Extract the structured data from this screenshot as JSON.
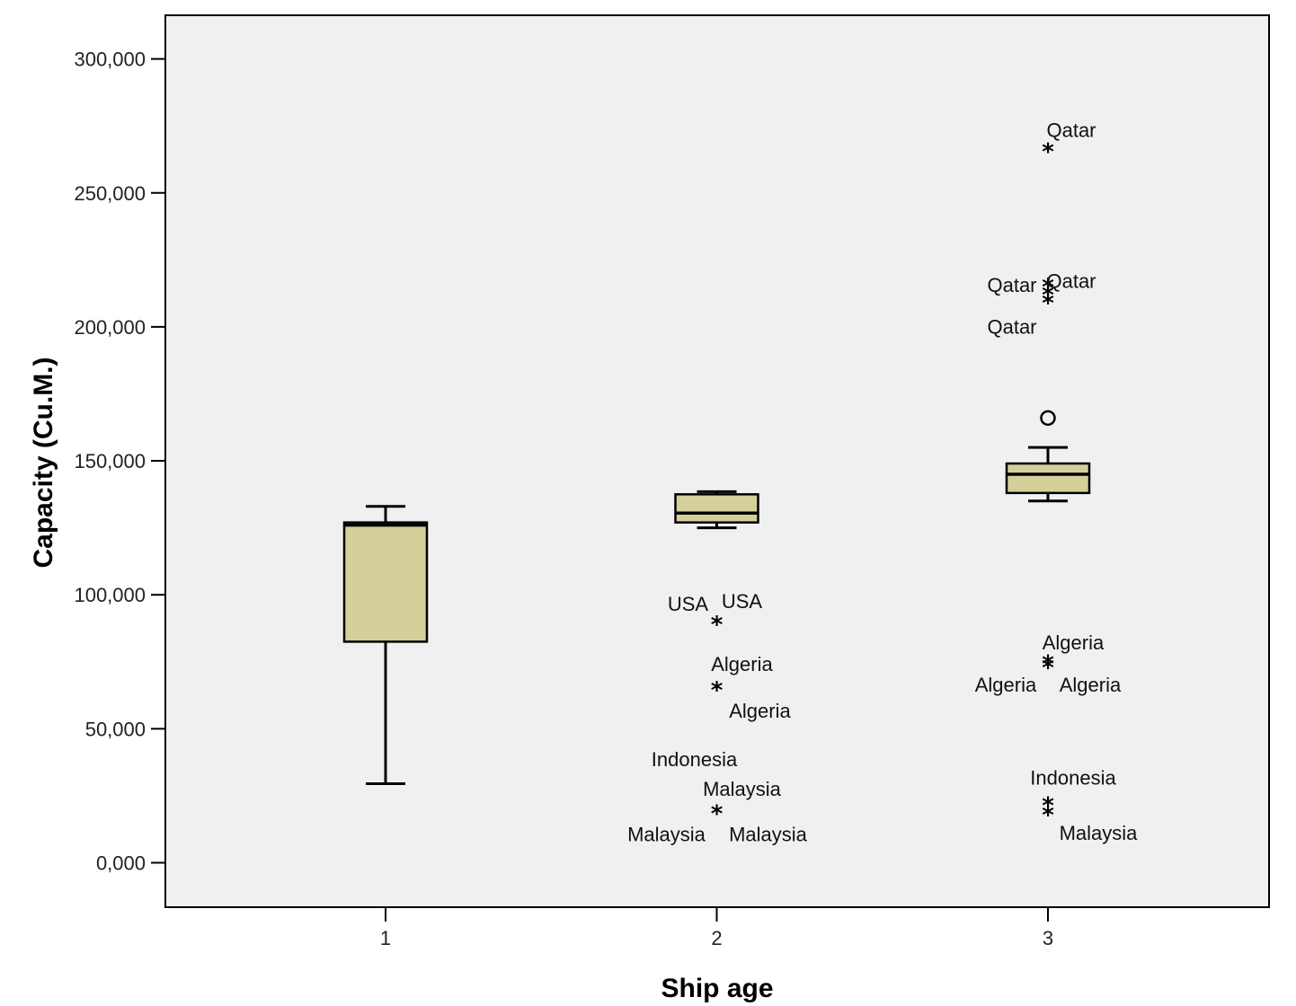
{
  "chart_data": {
    "type": "boxplot",
    "xlabel": "Ship age",
    "ylabel": "Capacity (Cu.M.)",
    "categories": [
      "1",
      "2",
      "3"
    ],
    "ylim": [
      -17000,
      332000
    ],
    "yticks": [
      {
        "value": 0,
        "label": "0,000"
      },
      {
        "value": 50000,
        "label": "50,000"
      },
      {
        "value": 100000,
        "label": "100,000"
      },
      {
        "value": 150000,
        "label": "150,000"
      },
      {
        "value": 200000,
        "label": "200,000"
      },
      {
        "value": 250000,
        "label": "250,000"
      },
      {
        "value": 300000,
        "label": "300,000"
      }
    ],
    "grid": false,
    "colors": {
      "box_fill": "#d5cf9a",
      "plot_bg": "#f0f0f0",
      "stroke": "#000000"
    },
    "boxes": [
      {
        "category": "1",
        "whisker_low": 29500,
        "q1": 82500,
        "median": 126000,
        "q3": 127000,
        "whisker_high": 133000
      },
      {
        "category": "2",
        "whisker_low": 125000,
        "q1": 127000,
        "median": 130500,
        "q3": 137500,
        "whisker_high": 138500
      },
      {
        "category": "3",
        "whisker_low": 135000,
        "q1": 138000,
        "median": 145000,
        "q3": 149000,
        "whisker_high": 155000
      }
    ],
    "outliers": [
      {
        "category": "3",
        "value": 166000,
        "marker": "circle"
      }
    ],
    "extremes": [
      {
        "category": "2",
        "value": 90000,
        "marker": "star"
      },
      {
        "category": "2",
        "value": 65500,
        "marker": "star"
      },
      {
        "category": "2",
        "value": 19500,
        "marker": "star"
      },
      {
        "category": "3",
        "value": 266500,
        "marker": "star"
      },
      {
        "category": "3",
        "value": 216000,
        "marker": "star"
      },
      {
        "category": "3",
        "value": 213000,
        "marker": "star"
      },
      {
        "category": "3",
        "value": 210000,
        "marker": "star"
      },
      {
        "category": "3",
        "value": 75500,
        "marker": "star"
      },
      {
        "category": "3",
        "value": 74000,
        "marker": "star"
      },
      {
        "category": "3",
        "value": 22500,
        "marker": "star"
      },
      {
        "category": "3",
        "value": 19000,
        "marker": "star"
      }
    ],
    "point_labels": [
      {
        "text": "USA",
        "category": "2",
        "value": 96700,
        "offset": -32
      },
      {
        "text": "USA",
        "category": "2",
        "value": 97800,
        "offset": 28
      },
      {
        "text": "Algeria",
        "category": "2",
        "value": 74200,
        "offset": 28
      },
      {
        "text": "Algeria",
        "category": "2",
        "value": 56800,
        "offset": 48
      },
      {
        "text": "Indonesia",
        "category": "2",
        "value": 38800,
        "offset": -25
      },
      {
        "text": "Malaysia",
        "category": "2",
        "value": 27600,
        "offset": 28
      },
      {
        "text": "Malaysia",
        "category": "2",
        "value": 10800,
        "offset": -56
      },
      {
        "text": "Malaysia",
        "category": "2",
        "value": 10800,
        "offset": 57
      },
      {
        "text": "Qatar",
        "category": "3",
        "value": 273500,
        "offset": 26
      },
      {
        "text": "Qatar",
        "category": "3",
        "value": 215700,
        "offset": -40
      },
      {
        "text": "Qatar",
        "category": "3",
        "value": 217200,
        "offset": 26
      },
      {
        "text": "Qatar",
        "category": "3",
        "value": 200200,
        "offset": -40
      },
      {
        "text": "Algeria",
        "category": "3",
        "value": 82300,
        "offset": 28
      },
      {
        "text": "Algeria",
        "category": "3",
        "value": 66500,
        "offset": -47
      },
      {
        "text": "Algeria",
        "category": "3",
        "value": 66500,
        "offset": 47
      },
      {
        "text": "Indonesia",
        "category": "3",
        "value": 31800,
        "offset": 28
      },
      {
        "text": "Malaysia",
        "category": "3",
        "value": 11300,
        "offset": 56
      }
    ]
  }
}
